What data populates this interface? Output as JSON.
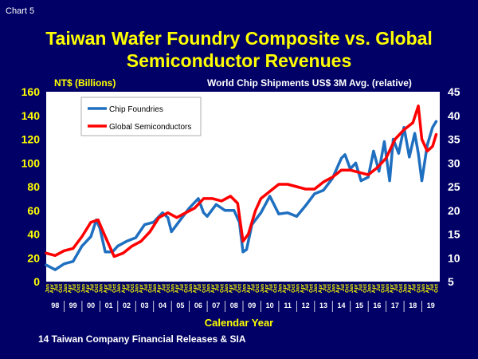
{
  "chart_label": "Chart 5",
  "chart_data": {
    "type": "line",
    "title": [
      "Taiwan Wafer Foundry Composite vs. Global",
      "Semiconductor Revenues"
    ],
    "ylabel": "NT$ (Billions)",
    "y2label": "World Chip Shipments US$ 3M Avg. (relative)",
    "xlabel": "Calendar Year",
    "source": "14 Taiwan Company Financial Releases & SIA",
    "ylim": [
      0,
      160
    ],
    "y_ticks": [
      "0",
      "20",
      "40",
      "60",
      "80",
      "100",
      "120",
      "140",
      "160"
    ],
    "y2lim": [
      5,
      45
    ],
    "y2_ticks": [
      "5",
      "10",
      "15",
      "20",
      "25",
      "30",
      "35",
      "40",
      "45"
    ],
    "years": [
      "98",
      "99",
      "00",
      "01",
      "02",
      "03",
      "04",
      "05",
      "06",
      "07",
      "08",
      "09",
      "10",
      "11",
      "12",
      "13",
      "14",
      "15",
      "16",
      "17",
      "18",
      "19"
    ],
    "months": [
      "Jan",
      "Apr",
      "Jul",
      "Oct"
    ],
    "legend_position": "top-left",
    "grid": false,
    "colors": {
      "background": "#000066",
      "plot": "#ffffff",
      "title": "#ffff00"
    },
    "series": [
      {
        "name": "Chip Foundries",
        "color": "#1f6fc0",
        "axis": "left",
        "x": [
          1998.0,
          1998.5,
          1999.0,
          1999.5,
          2000.0,
          2000.5,
          2000.8,
          2001.0,
          2001.3,
          2001.7,
          2002.0,
          2002.5,
          2003.0,
          2003.5,
          2004.0,
          2004.5,
          2004.8,
          2005.0,
          2005.5,
          2006.0,
          2006.5,
          2006.8,
          2007.0,
          2007.5,
          2008.0,
          2008.5,
          2008.8,
          2009.0,
          2009.2,
          2009.5,
          2010.0,
          2010.5,
          2011.0,
          2011.5,
          2012.0,
          2012.5,
          2013.0,
          2013.5,
          2014.0,
          2014.5,
          2014.7,
          2015.0,
          2015.3,
          2015.6,
          2016.0,
          2016.3,
          2016.6,
          2016.9,
          2017.2,
          2017.4,
          2017.7,
          2018.0,
          2018.3,
          2018.6,
          2018.8,
          2019.0,
          2019.3,
          2019.6,
          2019.8
        ],
        "values": [
          14,
          10,
          15,
          17,
          30,
          38,
          52,
          45,
          25,
          25,
          30,
          34,
          37,
          48,
          50,
          58,
          54,
          42,
          52,
          62,
          70,
          58,
          55,
          65,
          60,
          60,
          50,
          25,
          27,
          48,
          58,
          72,
          57,
          58,
          55,
          64,
          74,
          77,
          87,
          104,
          107,
          95,
          100,
          85,
          88,
          110,
          93,
          118,
          85,
          120,
          108,
          130,
          105,
          125,
          108,
          85,
          115,
          130,
          135
        ]
      },
      {
        "name": "Global Semiconductors",
        "color": "#ff0000",
        "axis": "right",
        "x": [
          1998.0,
          1998.5,
          1999.0,
          1999.5,
          2000.0,
          2000.5,
          2000.9,
          2001.3,
          2001.8,
          2002.3,
          2002.8,
          2003.3,
          2003.8,
          2004.3,
          2004.8,
          2005.3,
          2005.8,
          2006.3,
          2006.8,
          2007.3,
          2007.8,
          2008.3,
          2008.7,
          2009.0,
          2009.3,
          2009.7,
          2010.0,
          2010.5,
          2011.0,
          2011.5,
          2012.0,
          2012.5,
          2013.0,
          2013.5,
          2014.0,
          2014.5,
          2015.0,
          2015.5,
          2016.0,
          2016.5,
          2017.0,
          2017.5,
          2018.0,
          2018.5,
          2018.8,
          2019.0,
          2019.3,
          2019.6,
          2019.8
        ],
        "values": [
          11,
          10.5,
          11.5,
          12,
          14.5,
          17.5,
          18,
          14.5,
          10.3,
          11,
          12.5,
          13.5,
          15.5,
          18.5,
          19.5,
          18.5,
          19.5,
          20.5,
          22.5,
          22.5,
          22,
          23,
          21.5,
          13.5,
          15,
          20,
          22.5,
          24,
          25.5,
          25.5,
          25,
          24.5,
          24.5,
          26,
          27,
          28.5,
          28.5,
          28,
          27.5,
          29,
          31,
          35,
          37,
          38.5,
          42,
          35,
          32.5,
          33.5,
          36
        ]
      }
    ]
  }
}
